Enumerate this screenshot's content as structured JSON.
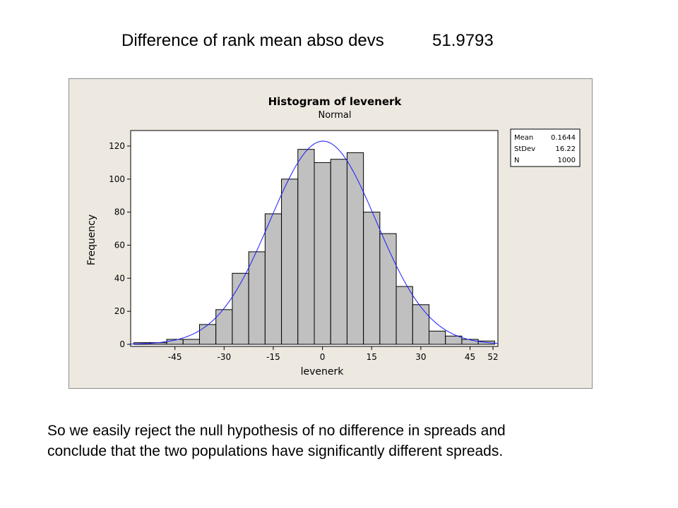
{
  "header": {
    "label": "Difference of rank mean abso devs",
    "value": "51.9793"
  },
  "conclusion": {
    "line1": "So we easily reject the null hypothesis of no difference in spreads and",
    "line2": "conclude that the two populations have significantly different spreads."
  },
  "chart_data": {
    "type": "bar",
    "title": "Histogram of levenerk",
    "subtitle": "Normal",
    "xlabel": "levenerk",
    "ylabel": "Frequency",
    "bin_width": 5,
    "bin_starts": [
      -57.5,
      -52.5,
      -47.5,
      -42.5,
      -37.5,
      -32.5,
      -27.5,
      -22.5,
      -17.5,
      -12.5,
      -7.5,
      -2.5,
      2.5,
      7.5,
      12.5,
      17.5,
      22.5,
      27.5,
      32.5,
      37.5,
      42.5,
      47.5
    ],
    "values": [
      1,
      1,
      3,
      3,
      12,
      21,
      43,
      56,
      79,
      100,
      118,
      110,
      112,
      116,
      80,
      67,
      35,
      24,
      8,
      5,
      3,
      2
    ],
    "xlim": [
      -58.5,
      53.5
    ],
    "ylim": [
      0,
      130
    ],
    "x_ticks": [
      -45,
      -30,
      -15,
      0,
      15,
      30,
      45,
      52
    ],
    "y_ticks": [
      0,
      20,
      40,
      60,
      80,
      100,
      120
    ],
    "fit": {
      "type": "Normal",
      "mean": 0.1644,
      "stdev": 16.22,
      "n": 1000
    },
    "stats": [
      {
        "label": "Mean",
        "value": "0.1644"
      },
      {
        "label": "StDev",
        "value": "16.22"
      },
      {
        "label": "N",
        "value": "1000"
      }
    ],
    "colors": {
      "bar_fill": "#c0c0c0",
      "curve": "#1a1aff",
      "panel": "#ede9e1"
    },
    "grid": false,
    "legend": "top-right"
  }
}
